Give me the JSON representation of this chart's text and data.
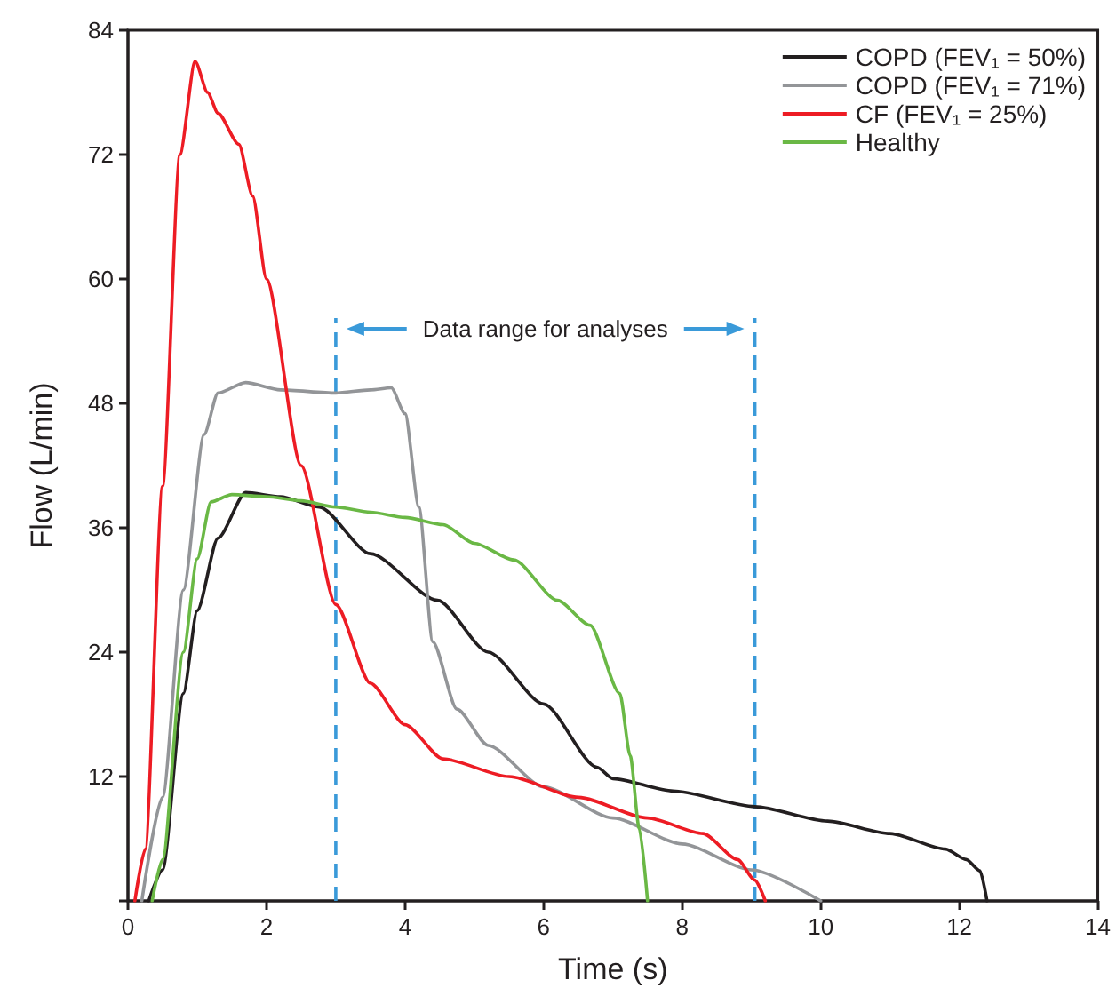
{
  "chart_data": {
    "type": "line",
    "xlabel": "Time (s)",
    "ylabel": "Flow (L/min)",
    "xlim": [
      0,
      14
    ],
    "xticks": [
      0,
      2,
      4,
      6,
      8,
      10,
      12,
      14
    ],
    "ylim": [
      0,
      84
    ],
    "yticks": [
      {
        "value": 0,
        "label": null
      },
      12,
      24,
      36,
      48,
      60,
      72,
      84
    ],
    "grid": false,
    "legend": "top right",
    "marker": "none",
    "line_style": "solid",
    "series": [
      {
        "name": "COPD (FEV₁ = 50%)",
        "color": "#231f20",
        "x": [
          0.3,
          0.5,
          0.8,
          1.0,
          1.3,
          1.7,
          2.2,
          2.76,
          3.5,
          4.47,
          5.2,
          6.0,
          6.77,
          7.0,
          7.87,
          9.05,
          10.1,
          11.0,
          11.8,
          12.1,
          12.3,
          12.4
        ],
        "values": [
          0,
          3,
          20,
          28,
          35,
          39.4,
          39,
          38,
          33.5,
          29,
          24,
          19,
          12.9,
          11.8,
          10.6,
          9.1,
          7.7,
          6.5,
          5,
          4,
          2.9,
          0
        ]
      },
      {
        "name": "COPD (FEV₁ = 71%)",
        "color": "#939598",
        "x": [
          0.2,
          0.5,
          0.8,
          1.1,
          1.3,
          1.7,
          2.2,
          3.0,
          3.5,
          3.8,
          4.0,
          4.2,
          4.4,
          4.75,
          5.2,
          6.0,
          7.0,
          8.0,
          9.0,
          10.0
        ],
        "values": [
          0,
          10,
          30,
          45,
          49,
          50,
          49.3,
          49,
          49.3,
          49.5,
          47,
          38,
          25,
          18.5,
          15,
          11,
          8,
          5.5,
          3,
          0
        ]
      },
      {
        "name": "CF (FEV₁ = 25%)",
        "color": "#ed1c24",
        "x": [
          0.1,
          0.25,
          0.5,
          0.75,
          0.97,
          1.15,
          1.3,
          1.6,
          1.8,
          2.0,
          2.5,
          3.0,
          3.5,
          4.0,
          4.55,
          5.5,
          6.5,
          7.5,
          8.3,
          8.8,
          9.05,
          9.2
        ],
        "values": [
          0,
          5,
          40,
          72,
          81,
          78,
          76,
          73,
          68,
          60,
          42,
          28.6,
          21,
          17,
          13.7,
          12,
          10,
          8,
          6.5,
          4,
          2,
          0
        ]
      },
      {
        "name": "Healthy",
        "color": "#6ab845",
        "x": [
          0.35,
          0.5,
          0.8,
          1.0,
          1.2,
          1.5,
          2.0,
          2.5,
          3.0,
          3.5,
          4.0,
          4.55,
          5.0,
          5.57,
          6.2,
          6.67,
          7.1,
          7.25,
          7.38,
          7.5
        ],
        "values": [
          0,
          4,
          24,
          33,
          38.5,
          39.2,
          39,
          38.6,
          38,
          37.5,
          37,
          36.3,
          34.5,
          32.9,
          29,
          26.6,
          20,
          14,
          7,
          0
        ]
      }
    ],
    "ref_lines": [
      {
        "axis": "x",
        "value": 3,
        "color": "#3a9ad9",
        "line_style": "dashed"
      },
      {
        "axis": "x",
        "value": 9.05,
        "color": "#3a9ad9",
        "line_style": "dashed"
      }
    ],
    "annotations": [
      "Data range for analyses"
    ]
  }
}
